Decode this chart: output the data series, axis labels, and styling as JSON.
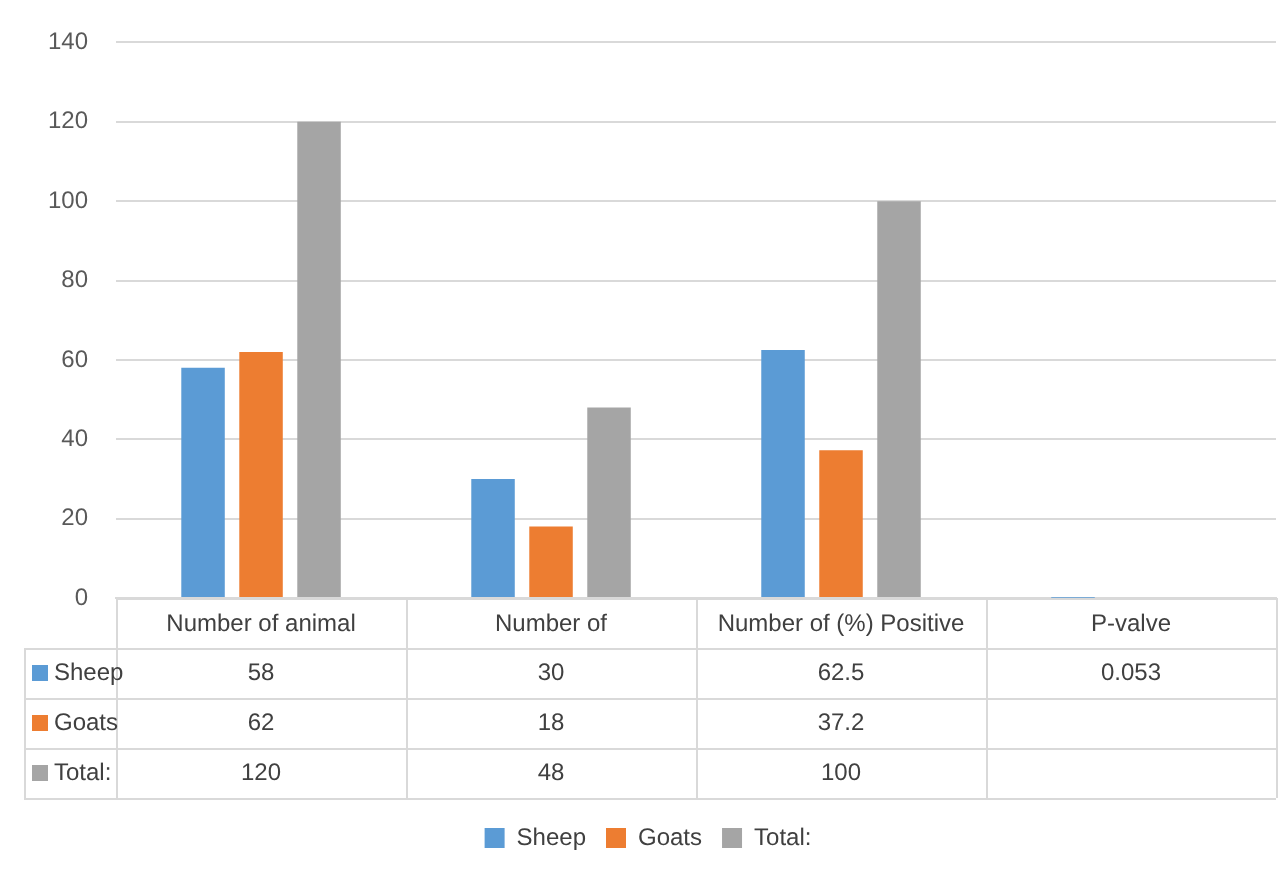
{
  "chart_data": {
    "type": "bar",
    "categories": [
      "Number of animal",
      "Number of",
      "Number of (%) Positive",
      "P-valve"
    ],
    "series": [
      {
        "name": "Sheep",
        "color": "#5b9bd5",
        "values": [
          58,
          30,
          62.5,
          0.053
        ]
      },
      {
        "name": "Goats",
        "color": "#ed7d31",
        "values": [
          62,
          18,
          37.2,
          null
        ]
      },
      {
        "name": "Total:",
        "color": "#a5a5a5",
        "values": [
          120,
          48,
          100,
          null
        ]
      }
    ],
    "ylim": [
      0,
      140
    ],
    "yticks": [
      0,
      20,
      40,
      60,
      80,
      100,
      120,
      140
    ],
    "grid": "y",
    "legend": "bottom",
    "data_labels": true
  }
}
